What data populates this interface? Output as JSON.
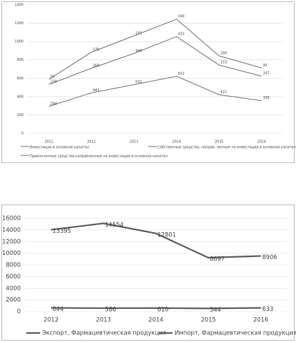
{
  "chart_data": [
    {
      "type": "line",
      "stacked": true,
      "grid": true,
      "categories": [
        "2011",
        "2012",
        "2013",
        "2014",
        "2015",
        "2016"
      ],
      "ylim": [
        0,
        1400
      ],
      "yticks": [
        0,
        200,
        400,
        600,
        800,
        1000,
        1200,
        1400
      ],
      "series": [
        {
          "name": "Инвестиции в основной капитал",
          "color": "#595959",
          "values": [
            294,
            441,
            531,
            622,
            421,
            356
          ]
        },
        {
          "name": "Собственные средства, направ- ленные на инвестиции в основной капитал",
          "color": "#595959",
          "values": [
            239,
            268,
            340,
            432,
            323,
            267
          ]
        },
        {
          "name": "Привлеченные средства,направленные на инвестиции в основной капитал",
          "color": "#595959",
          "values": [
            55,
            175,
            192,
            190,
            100,
            90
          ]
        }
      ]
    },
    {
      "type": "line",
      "stacked": true,
      "grid": true,
      "categories": [
        "2012",
        "2013",
        "2014",
        "2015",
        "2016"
      ],
      "ylim": [
        0,
        16000
      ],
      "yticks": [
        0,
        2000,
        4000,
        6000,
        8000,
        10000,
        12000,
        14000,
        16000
      ],
      "series": [
        {
          "name": "Экспорт, Фармацевтическая продукция",
          "color": "#595959",
          "values": [
            644,
            586,
            610,
            544,
            633
          ]
        },
        {
          "name": "Импорт, Фармацевтическая продукция",
          "color": "#595959",
          "values": [
            13395,
            14554,
            12801,
            8697,
            8906
          ]
        }
      ]
    }
  ]
}
